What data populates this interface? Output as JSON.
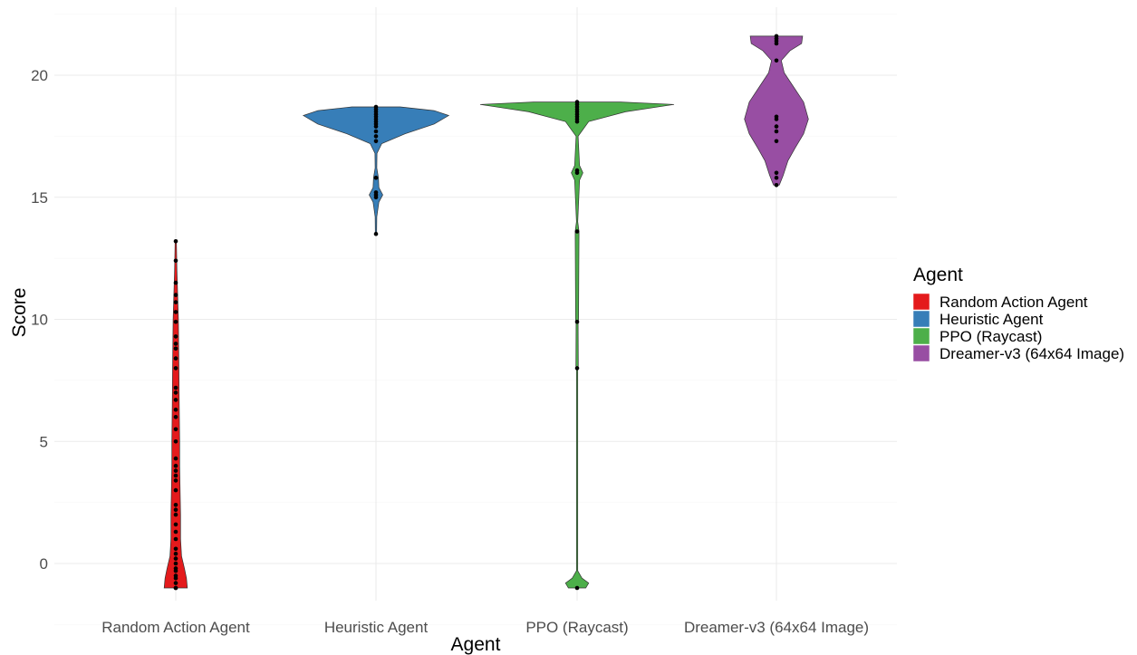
{
  "chart_data": {
    "type": "violin",
    "title": "",
    "xlabel": "Agent",
    "ylabel": "Score",
    "ylim": [
      -1.6,
      22.6
    ],
    "yticks": [
      0,
      5,
      10,
      15,
      20
    ],
    "grid": true,
    "legend": {
      "title": "Agent",
      "placement": "right"
    },
    "categories": [
      "Random Action Agent",
      "Heuristic Agent",
      "PPO (Raycast)",
      "Dreamer-v3 (64x64 Image)"
    ],
    "series": [
      {
        "name": "Random Action Agent",
        "color": "#E41A1C",
        "range": [
          -1,
          13.2
        ],
        "density": [
          [
            -1,
            0.12
          ],
          [
            -0.6,
            0.11
          ],
          [
            -0.2,
            0.09
          ],
          [
            0.3,
            0.06
          ],
          [
            1,
            0.05
          ],
          [
            2,
            0.05
          ],
          [
            3,
            0.045
          ],
          [
            4,
            0.04
          ],
          [
            5,
            0.04
          ],
          [
            6,
            0.037
          ],
          [
            7,
            0.035
          ],
          [
            8,
            0.033
          ],
          [
            9,
            0.03
          ],
          [
            10,
            0.027
          ],
          [
            11,
            0.02
          ],
          [
            12,
            0.012
          ],
          [
            13.2,
            0.004
          ]
        ],
        "points": [
          -1,
          -1,
          -0.8,
          -0.6,
          -0.5,
          -0.3,
          -0.2,
          0,
          0.2,
          0.4,
          0.6,
          1,
          1.3,
          1.6,
          2,
          2.2,
          2.4,
          3,
          3.4,
          3.6,
          3.8,
          4,
          4.3,
          5,
          5.5,
          6,
          6.3,
          6.7,
          7,
          7.2,
          8,
          8.4,
          8.8,
          9,
          9.3,
          9.9,
          10.3,
          10.7,
          11,
          11.5,
          12.4,
          13.2
        ]
      },
      {
        "name": "Heuristic Agent",
        "color": "#377EB8",
        "range": [
          13.5,
          18.7
        ],
        "density": [
          [
            13.5,
            0.006
          ],
          [
            14.2,
            0.008
          ],
          [
            14.8,
            0.03
          ],
          [
            15.1,
            0.07
          ],
          [
            15.4,
            0.03
          ],
          [
            15.8,
            0.025
          ],
          [
            16.2,
            0.008
          ],
          [
            16.8,
            0.01
          ],
          [
            17.2,
            0.06
          ],
          [
            17.6,
            0.3
          ],
          [
            18,
            0.6
          ],
          [
            18.35,
            0.75
          ],
          [
            18.55,
            0.6
          ],
          [
            18.7,
            0.25
          ]
        ],
        "points": [
          13.5,
          15,
          15.1,
          15.2,
          15.8,
          17.3,
          17.5,
          17.7,
          17.9,
          18,
          18.1,
          18.2,
          18.3,
          18.4,
          18.5,
          18.6,
          18.7
        ]
      },
      {
        "name": "PPO (Raycast)",
        "color": "#4DAF4A",
        "range": [
          -1,
          18.9
        ],
        "density": [
          [
            -1,
            0.09
          ],
          [
            -0.8,
            0.12
          ],
          [
            -0.6,
            0.05
          ],
          [
            -0.3,
            0.006
          ],
          [
            2,
            0.004
          ],
          [
            7.9,
            0.005
          ],
          [
            8.1,
            0.012
          ],
          [
            9.8,
            0.01
          ],
          [
            10,
            0.015
          ],
          [
            13.6,
            0.02
          ],
          [
            14,
            0.005
          ],
          [
            15.7,
            0.025
          ],
          [
            16,
            0.06
          ],
          [
            16.3,
            0.025
          ],
          [
            17.5,
            0.01
          ],
          [
            18.1,
            0.12
          ],
          [
            18.5,
            0.5
          ],
          [
            18.8,
            1.0
          ],
          [
            18.9,
            0.45
          ]
        ],
        "points": [
          -1,
          8,
          9.9,
          13.6,
          16,
          16.1,
          18.1,
          18.2,
          18.3,
          18.4,
          18.5,
          18.6,
          18.7,
          18.8,
          18.9
        ]
      },
      {
        "name": "Dreamer-v3 (64x64 Image)",
        "color": "#984EA3",
        "range": [
          15.5,
          21.6
        ],
        "density": [
          [
            15.5,
            0.03
          ],
          [
            15.9,
            0.07
          ],
          [
            16.5,
            0.12
          ],
          [
            17,
            0.19
          ],
          [
            17.6,
            0.28
          ],
          [
            18.2,
            0.33
          ],
          [
            18.9,
            0.28
          ],
          [
            19.5,
            0.18
          ],
          [
            20.1,
            0.08
          ],
          [
            20.6,
            0.05
          ],
          [
            21,
            0.14
          ],
          [
            21.3,
            0.26
          ],
          [
            21.6,
            0.27
          ]
        ],
        "points": [
          15.5,
          15.8,
          16,
          17.3,
          17.7,
          17.9,
          18.2,
          18.3,
          20.6,
          21.3,
          21.4,
          21.5,
          21.6
        ]
      }
    ]
  }
}
